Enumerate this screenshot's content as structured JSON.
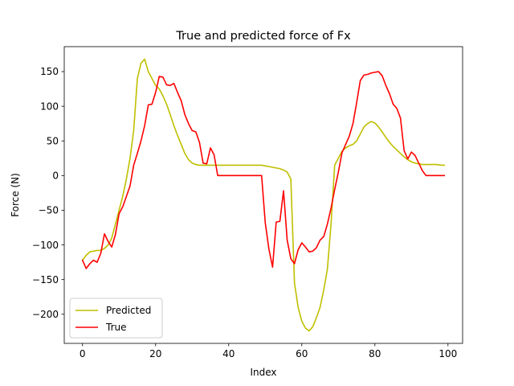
{
  "chart_data": {
    "type": "line",
    "title": "True and predicted force of Fx",
    "xlabel": "Index",
    "ylabel": "Force (N)",
    "xlim": [
      -5,
      104
    ],
    "ylim": [
      -242,
      186
    ],
    "xticks": [
      0,
      20,
      40,
      60,
      80,
      100
    ],
    "yticks": [
      -200,
      -150,
      -100,
      -50,
      0,
      50,
      100,
      150
    ],
    "ytick_labels": [
      "−200",
      "−150",
      "−100",
      "−50",
      "0",
      "50",
      "100",
      "150"
    ],
    "grid": false,
    "legend": "lower-left",
    "series": [
      {
        "name": "Predicted",
        "color": "#bfbf00",
        "x": [
          0,
          1,
          2,
          3,
          4,
          5,
          6,
          7,
          8,
          9,
          10,
          11,
          12,
          13,
          14,
          15,
          16,
          17,
          18,
          19,
          20,
          21,
          22,
          23,
          24,
          25,
          26,
          27,
          28,
          29,
          30,
          31,
          32,
          33,
          34,
          35,
          36,
          37,
          38,
          39,
          40,
          41,
          42,
          43,
          44,
          45,
          46,
          47,
          48,
          49,
          50,
          51,
          52,
          53,
          54,
          55,
          56,
          57,
          58,
          59,
          60,
          61,
          62,
          63,
          64,
          65,
          66,
          67,
          68,
          69,
          70,
          71,
          72,
          73,
          74,
          75,
          76,
          77,
          78,
          79,
          80,
          81,
          82,
          83,
          84,
          85,
          86,
          87,
          88,
          89,
          90,
          91,
          92,
          93,
          94,
          95,
          96,
          97,
          98,
          99
        ],
        "y": [
          -122,
          -115,
          -110,
          -109,
          -108,
          -108,
          -105,
          -100,
          -90,
          -70,
          -50,
          -30,
          -5,
          25,
          65,
          140,
          162,
          168,
          150,
          140,
          130,
          125,
          115,
          103,
          88,
          72,
          58,
          45,
          32,
          23,
          18,
          16,
          15,
          15,
          15,
          15,
          15,
          15,
          15,
          15,
          15,
          15,
          15,
          15,
          15,
          15,
          15,
          15,
          15,
          15,
          14,
          13,
          12,
          11,
          10,
          8,
          5,
          -5,
          -155,
          -190,
          -210,
          -220,
          -224,
          -218,
          -205,
          -190,
          -165,
          -135,
          -70,
          15,
          25,
          35,
          40,
          43,
          45,
          50,
          60,
          70,
          75,
          78,
          76,
          70,
          63,
          55,
          48,
          42,
          37,
          32,
          27,
          23,
          20,
          18,
          17,
          16,
          16,
          16,
          16,
          16,
          15,
          15
        ]
      },
      {
        "name": "True",
        "color": "#ff0000",
        "x": [
          0,
          1,
          2,
          3,
          4,
          5,
          6,
          7,
          8,
          9,
          10,
          11,
          12,
          13,
          14,
          15,
          16,
          17,
          18,
          19,
          20,
          21,
          22,
          23,
          24,
          25,
          26,
          27,
          28,
          29,
          30,
          31,
          32,
          33,
          34,
          35,
          36,
          37,
          38,
          39,
          40,
          41,
          42,
          43,
          44,
          45,
          46,
          47,
          48,
          49,
          50,
          51,
          52,
          53,
          54,
          55,
          56,
          57,
          58,
          59,
          60,
          61,
          62,
          63,
          64,
          65,
          66,
          67,
          68,
          69,
          70,
          71,
          72,
          73,
          74,
          75,
          76,
          77,
          78,
          79,
          80,
          81,
          82,
          83,
          84,
          85,
          86,
          87,
          88,
          89,
          90,
          91,
          92,
          93,
          94,
          95,
          96,
          97,
          98,
          99
        ],
        "y": [
          -122,
          -134,
          -127,
          -122,
          -125,
          -112,
          -84,
          -95,
          -103,
          -85,
          -55,
          -45,
          -30,
          -15,
          15,
          32,
          50,
          72,
          102,
          103,
          120,
          143,
          142,
          131,
          130,
          133,
          120,
          108,
          88,
          75,
          65,
          63,
          48,
          18,
          17,
          40,
          30,
          0,
          0,
          0,
          0,
          0,
          0,
          0,
          0,
          0,
          0,
          0,
          0,
          0,
          -68,
          -106,
          -132,
          -67,
          -66,
          -22,
          -93,
          -120,
          -127,
          -107,
          -97,
          -103,
          -110,
          -109,
          -104,
          -93,
          -88,
          -70,
          -47,
          -20,
          5,
          33,
          45,
          57,
          75,
          105,
          137,
          145,
          146,
          148,
          149,
          150,
          144,
          130,
          118,
          103,
          97,
          83,
          36,
          24,
          34,
          29,
          18,
          7,
          0,
          0,
          0,
          0,
          0,
          0
        ]
      }
    ]
  }
}
